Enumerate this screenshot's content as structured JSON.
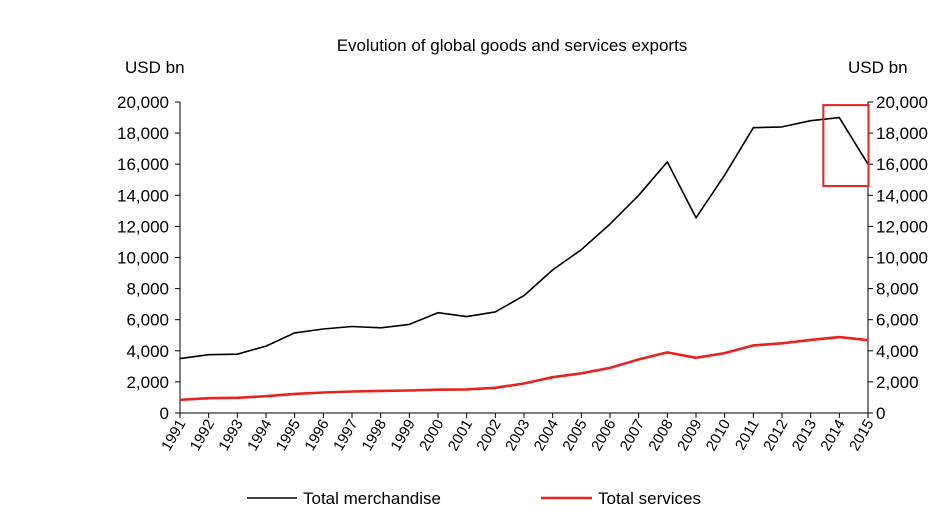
{
  "chart_data": {
    "type": "line",
    "title": "Evolution of global goods and services exports",
    "ylabel_left": "USD bn",
    "ylabel_right": "USD bn",
    "ylim": [
      0,
      20000
    ],
    "yticks": [
      "0",
      "2,000",
      "4,000",
      "6,000",
      "8,000",
      "10,000",
      "12,000",
      "14,000",
      "16,000",
      "18,000",
      "20,000"
    ],
    "categories": [
      "1991",
      "1992",
      "1993",
      "1994",
      "1995",
      "1996",
      "1997",
      "1998",
      "1999",
      "2000",
      "2001",
      "2002",
      "2003",
      "2004",
      "2005",
      "2006",
      "2007",
      "2008",
      "2009",
      "2010",
      "2011",
      "2012",
      "2013",
      "2014",
      "2015"
    ],
    "series": [
      {
        "name": "Total merchandise",
        "color": "#000000",
        "values": [
          3500,
          3750,
          3780,
          4300,
          5150,
          5400,
          5560,
          5480,
          5700,
          6450,
          6200,
          6500,
          7550,
          9200,
          10500,
          12150,
          14000,
          16150,
          12550,
          15300,
          18350,
          18400,
          18800,
          19000,
          16000
        ]
      },
      {
        "name": "Total services",
        "color": "#e8231f",
        "values": [
          850,
          950,
          980,
          1080,
          1230,
          1320,
          1380,
          1420,
          1450,
          1500,
          1520,
          1620,
          1900,
          2300,
          2550,
          2900,
          3450,
          3900,
          3550,
          3850,
          4350,
          4480,
          4700,
          4880,
          4680
        ]
      }
    ],
    "highlight_box": {
      "from": "2014",
      "to": "2015",
      "color": "#e8231f"
    },
    "legend_position": "bottom",
    "grid": false
  }
}
